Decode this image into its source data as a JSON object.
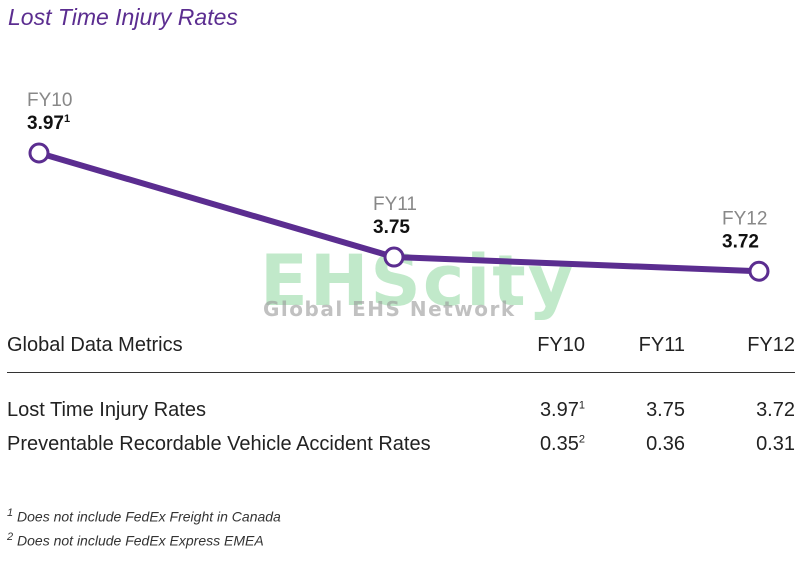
{
  "chart_data": {
    "type": "line",
    "title": "Lost Time Injury Rates",
    "categories": [
      "FY10",
      "FY11",
      "FY12"
    ],
    "values": [
      3.97,
      3.75,
      3.72
    ],
    "value_labels": [
      "3.97",
      "3.75",
      "3.72"
    ],
    "value_superscripts": [
      "1",
      "",
      ""
    ],
    "color": "#5b2d90",
    "grid": false
  },
  "watermark": {
    "main": "EHScity",
    "sub": "Global EHS Network"
  },
  "table": {
    "header": [
      "Global Data Metrics",
      "FY10",
      "FY11",
      "FY12"
    ],
    "rows": [
      {
        "label": "Lost Time Injury Rates",
        "values": [
          "3.97",
          "3.75",
          "3.72"
        ],
        "sup": [
          "1",
          "",
          ""
        ]
      },
      {
        "label": "Preventable Recordable Vehicle Accident Rates",
        "values": [
          "0.35",
          "0.36",
          "0.31"
        ],
        "sup": [
          "2",
          "",
          ""
        ]
      }
    ]
  },
  "footnotes": [
    {
      "mark": "1",
      "text": "Does not include FedEx Freight in Canada"
    },
    {
      "mark": "2",
      "text": "Does not include FedEx Express EMEA"
    }
  ]
}
